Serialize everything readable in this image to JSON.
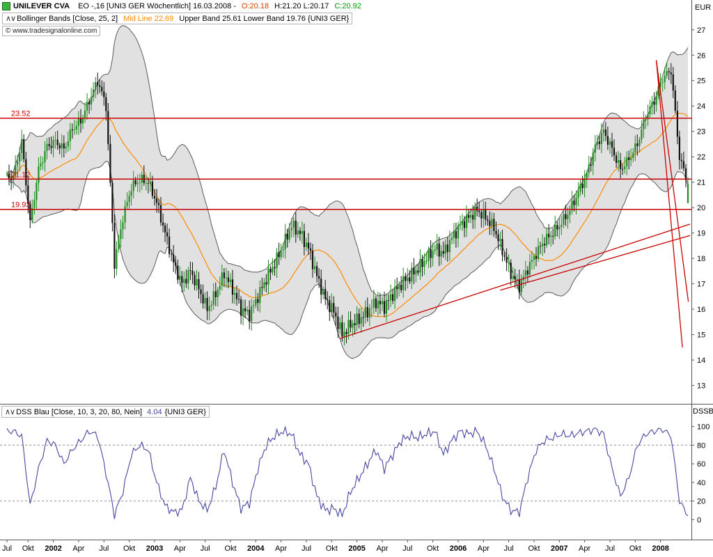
{
  "window": {
    "currency_label": "EUR",
    "dss_panel_label": "DSSB"
  },
  "header": {
    "symbol": "UNILEVER CVA",
    "details_prefix": "EO -,16 [UNI3 GER  Wöchentlich] 16.03.2008 -",
    "open_label": "O:20.18",
    "high_low_label": "H:21.20 L:20.17",
    "close_label": "C:20.92"
  },
  "indicator_bar": {
    "icon": "∧∨",
    "name": "Bollinger Bands [Close, 25, 2]",
    "mid_line": "Mid Line 22.69",
    "bands": "Upper Band 25.61 Lower Band 19.76 {UNI3 GER}"
  },
  "copyright": "© www.tradesignalonline.com",
  "dss_bar": {
    "icon": "∧∨",
    "name": "DSS Blau [Close, 10, 3, 20, 80, Nein]",
    "value": "4.04",
    "suffix": "{UNI3 GER}"
  },
  "colors": {
    "candle_up": "#1f8f1f",
    "candle_down": "#101010",
    "band_fill": "#d9d9d9",
    "band_line": "#5a5a5a",
    "mid_line": "#ff8a00",
    "level_line": "#c80000",
    "dss_line": "#4646a0",
    "dashed_ref": "#909090",
    "axis_line": "#555555"
  },
  "chart_data": [
    {
      "type": "candlestick",
      "title": "UNILEVER CVA [UNI3 GER] Wöchentlich (weekly)",
      "ylabel": "EUR",
      "ylim": [
        12.55,
        27.35
      ],
      "yticks": [
        27,
        26,
        25,
        24,
        23,
        22,
        21,
        20,
        19,
        18,
        17,
        16,
        15,
        14,
        13
      ],
      "x_start": "2001-07",
      "sampling": "approximate monthly closes read from weekly chart",
      "monthly_closes": [
        21.2,
        22.6,
        19.4,
        21.5,
        22.4,
        22.6,
        22.3,
        23.1,
        23.4,
        24.2,
        25.0,
        24.0,
        17.8,
        19.6,
        20.8,
        21.1,
        21.0,
        20.2,
        19.0,
        17.8,
        17.0,
        17.5,
        16.8,
        16.0,
        16.6,
        17.4,
        16.8,
        16.0,
        15.8,
        16.5,
        17.2,
        17.8,
        18.5,
        19.3,
        19.0,
        18.4,
        17.3,
        16.4,
        15.9,
        15.0,
        15.4,
        15.6,
        15.9,
        16.3,
        16.1,
        16.6,
        17.0,
        17.3,
        17.6,
        18.0,
        18.4,
        18.2,
        18.8,
        19.3,
        19.6,
        19.9,
        19.6,
        19.2,
        18.3,
        17.4,
        16.9,
        17.6,
        18.2,
        18.7,
        19.0,
        19.4,
        19.9,
        20.6,
        21.3,
        22.4,
        23.0,
        22.3,
        21.5,
        21.9,
        22.5,
        23.6,
        24.2,
        25.1,
        25.4,
        22.0,
        20.92
      ],
      "last_candle": {
        "open": 20.18,
        "high": 21.2,
        "low": 20.17,
        "close": 20.92
      },
      "bollinger": {
        "period": 25,
        "stddev": 2,
        "mid": 22.69,
        "upper": 25.61,
        "lower": 19.76
      },
      "horizontal_lines": [
        {
          "value": 23.52,
          "label": "23.52"
        },
        {
          "value": 21.12,
          "label": "21.12"
        },
        {
          "value": 19.93,
          "label": "19.93"
        }
      ],
      "trend_lines": [
        {
          "x1_month": 40,
          "y1": 14.85,
          "x2_month": 81.5,
          "y2": 19.35
        },
        {
          "x1_month": 59,
          "y1": 16.75,
          "x2_month": 81.5,
          "y2": 18.9
        },
        {
          "x1_month": 77.5,
          "y1": 25.8,
          "x2_month": 81.3,
          "y2": 16.3
        },
        {
          "x1_month": 77.5,
          "y1": 25.8,
          "x2_month": 80.6,
          "y2": 14.5
        }
      ]
    },
    {
      "type": "line",
      "name": "DSS Blau [Close, 10, 3, 20, 80, Nein]",
      "ylim": [
        -8,
        108
      ],
      "yticks": [
        100,
        80,
        60,
        40,
        20,
        0
      ],
      "reference_lines": [
        80,
        20
      ],
      "sampling": "approximate monthly values read from weekly oscillator",
      "monthly_values": [
        95,
        90,
        15,
        55,
        85,
        80,
        60,
        75,
        85,
        95,
        90,
        50,
        5,
        30,
        70,
        80,
        75,
        40,
        15,
        8,
        10,
        45,
        20,
        10,
        35,
        75,
        40,
        12,
        18,
        55,
        80,
        90,
        95,
        92,
        70,
        60,
        25,
        10,
        12,
        5,
        30,
        45,
        60,
        75,
        55,
        70,
        85,
        90,
        88,
        92,
        95,
        70,
        85,
        95,
        92,
        95,
        80,
        55,
        25,
        10,
        8,
        45,
        75,
        85,
        88,
        92,
        90,
        93,
        95,
        97,
        92,
        55,
        25,
        45,
        80,
        92,
        95,
        97,
        90,
        20,
        4.04
      ],
      "last_value": 4.04
    }
  ],
  "xaxis": {
    "months_per_label": 3,
    "labels": [
      "Jul",
      "Okt",
      "2002",
      "Apr",
      "Jul",
      "Okt",
      "2003",
      "Apr",
      "Jul",
      "Okt",
      "2004",
      "Apr",
      "Jul",
      "Okt",
      "2005",
      "Apr",
      "Jul",
      "Okt",
      "2006",
      "Apr",
      "Jul",
      "Okt",
      "2007",
      "Apr",
      "Jul",
      "Okt",
      "2008"
    ]
  }
}
